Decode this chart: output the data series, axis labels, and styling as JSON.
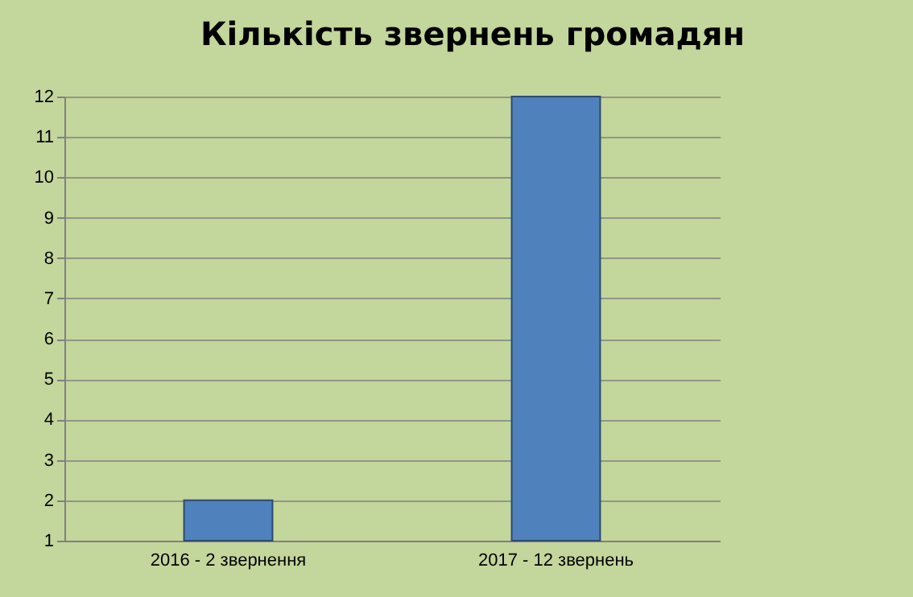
{
  "chart_data": {
    "type": "bar",
    "title": "Кількість звернень громадян",
    "categories": [
      "2016 - 2 звернення",
      "2017 - 12 звернень"
    ],
    "values": [
      2,
      12
    ],
    "color": "#4f81bd",
    "ylim": [
      1,
      12
    ],
    "yticks": [
      1,
      2,
      3,
      4,
      5,
      6,
      7,
      8,
      9,
      10,
      11,
      12
    ],
    "grid": true
  }
}
